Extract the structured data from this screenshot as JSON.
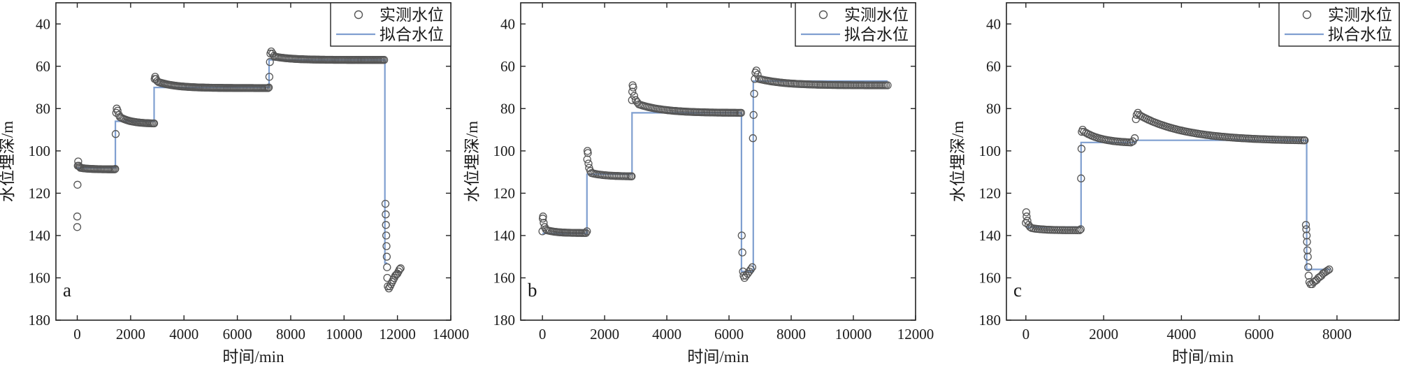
{
  "chart_data": [
    {
      "type": "scatter",
      "panel_label": "a",
      "xlabel": "时间/min",
      "ylabel": "水位埋深/m",
      "xlim": [
        -800,
        14000
      ],
      "ylim": [
        180,
        30
      ],
      "y_inverted": true,
      "xticks": [
        0,
        2000,
        4000,
        6000,
        8000,
        10000,
        12000,
        14000
      ],
      "yticks": [
        40,
        60,
        80,
        100,
        120,
        140,
        160,
        180
      ],
      "legend_position": "top-right",
      "legend": [
        "实测水位",
        "拟合水位"
      ],
      "series": [
        {
          "name": "实测水位",
          "marker": "open-circle",
          "color": "#555555",
          "segments": [
            {
              "points": [
                [
                  0,
                  136
                ],
                [
                  0,
                  131
                ],
                [
                  10,
                  116
                ],
                [
                  20,
                  107
                ],
                [
                  35,
                  105
                ],
                [
                  60,
                  107
                ],
                [
                  90,
                  107.5
                ]
              ]
            },
            {
              "decay": {
                "x_start": 120,
                "x_end": 1400,
                "y_start": 108,
                "y_end": 108.7,
                "n": 26,
                "k": 4
              }
            },
            {
              "points": [
                [
                  1420,
                  108.5
                ],
                [
                  1440,
                  92
                ],
                [
                  1460,
                  82
                ],
                [
                  1480,
                  80
                ],
                [
                  1510,
                  81
                ],
                [
                  1560,
                  83
                ]
              ]
            },
            {
              "decay": {
                "x_start": 1600,
                "x_end": 2850,
                "y_start": 84,
                "y_end": 87,
                "n": 24,
                "k": 3
              }
            },
            {
              "points": [
                [
                  2880,
                  87
                ],
                [
                  2900,
                  66
                ],
                [
                  2920,
                  65
                ],
                [
                  2950,
                  66
                ],
                [
                  3000,
                  67
                ]
              ]
            },
            {
              "decay": {
                "x_start": 3050,
                "x_end": 7150,
                "y_start": 67.5,
                "y_end": 70.3,
                "n": 80,
                "k": 6
              }
            },
            {
              "points": [
                [
                  7180,
                  70
                ],
                [
                  7200,
                  65
                ],
                [
                  7220,
                  58
                ],
                [
                  7240,
                  54
                ],
                [
                  7270,
                  53
                ],
                [
                  7320,
                  54
                ],
                [
                  7380,
                  55
                ]
              ]
            },
            {
              "decay": {
                "x_start": 7420,
                "x_end": 11450,
                "y_start": 55.5,
                "y_end": 57,
                "n": 80,
                "k": 6
              }
            },
            {
              "points": [
                [
                  11500,
                  57
                ],
                [
                  11550,
                  125
                ],
                [
                  11560,
                  130
                ],
                [
                  11570,
                  135
                ],
                [
                  11580,
                  140
                ],
                [
                  11590,
                  145
                ],
                [
                  11600,
                  150
                ],
                [
                  11610,
                  155
                ],
                [
                  11620,
                  160
                ],
                [
                  11640,
                  164
                ],
                [
                  11680,
                  165
                ],
                [
                  11720,
                  164
                ],
                [
                  11760,
                  163
                ],
                [
                  11800,
                  162
                ],
                [
                  11840,
                  161
                ],
                [
                  11880,
                  160
                ],
                [
                  11920,
                  159
                ],
                [
                  11960,
                  158.5
                ],
                [
                  12000,
                  158
                ],
                [
                  12040,
                  157
                ],
                [
                  12080,
                  156
                ],
                [
                  12120,
                  155.5
                ]
              ]
            }
          ]
        },
        {
          "name": "拟合水位",
          "color": "#7f9fd0",
          "points": [
            [
              0,
              108
            ],
            [
              1430,
              108
            ],
            [
              1430,
              86
            ],
            [
              2880,
              86
            ],
            [
              2880,
              70
            ],
            [
              7190,
              70
            ],
            [
              7190,
              57
            ],
            [
              11530,
              57
            ],
            [
              11530,
              153
            ],
            [
              11620,
              153
            ]
          ]
        }
      ]
    },
    {
      "type": "scatter",
      "panel_label": "b",
      "xlabel": "时间/min",
      "ylabel": "水位埋深/m",
      "xlim": [
        -700,
        12000
      ],
      "ylim": [
        180,
        30
      ],
      "y_inverted": true,
      "xticks": [
        0,
        2000,
        4000,
        6000,
        8000,
        10000,
        12000
      ],
      "yticks": [
        40,
        60,
        80,
        100,
        120,
        140,
        160,
        180
      ],
      "legend_position": "top-right",
      "legend": [
        "实测水位",
        "拟合水位"
      ],
      "series": [
        {
          "name": "实测水位",
          "marker": "open-circle",
          "color": "#555555",
          "segments": [
            {
              "points": [
                [
                  0,
                  138
                ],
                [
                  10,
                  132
                ],
                [
                  20,
                  131
                ],
                [
                  40,
                  134
                ],
                [
                  70,
                  136
                ],
                [
                  110,
                  137
                ]
              ]
            },
            {
              "decay": {
                "x_start": 150,
                "x_end": 1400,
                "y_start": 137.5,
                "y_end": 138.8,
                "n": 26,
                "k": 4
              }
            },
            {
              "points": [
                [
                  1430,
                  138
                ],
                [
                  1440,
                  104
                ],
                [
                  1450,
                  100
                ],
                [
                  1460,
                  101
                ],
                [
                  1480,
                  106
                ],
                [
                  1500,
                  108
                ],
                [
                  1540,
                  109.5
                ]
              ]
            },
            {
              "decay": {
                "x_start": 1580,
                "x_end": 2850,
                "y_start": 110.5,
                "y_end": 112,
                "n": 24,
                "k": 3
              }
            },
            {
              "points": [
                [
                  2870,
                  112
                ],
                [
                  2880,
                  76
                ],
                [
                  2890,
                  72
                ],
                [
                  2900,
                  69
                ],
                [
                  2920,
                  70
                ],
                [
                  2950,
                  74
                ],
                [
                  3000,
                  76
                ],
                [
                  3050,
                  77
                ]
              ]
            },
            {
              "decay": {
                "x_start": 3100,
                "x_end": 6350,
                "y_start": 78,
                "y_end": 82,
                "n": 64,
                "k": 4
              }
            },
            {
              "points": [
                [
                  6390,
                  82
                ],
                [
                  6410,
                  140
                ],
                [
                  6430,
                  148
                ],
                [
                  6450,
                  157
                ],
                [
                  6470,
                  159
                ],
                [
                  6500,
                  160
                ],
                [
                  6550,
                  159
                ],
                [
                  6600,
                  158
                ],
                [
                  6650,
                  157
                ],
                [
                  6700,
                  156
                ],
                [
                  6750,
                  155
                ]
              ]
            },
            {
              "points": [
                [
                  6770,
                  94
                ],
                [
                  6790,
                  83
                ],
                [
                  6810,
                  73
                ],
                [
                  6830,
                  66
                ],
                [
                  6850,
                  63
                ],
                [
                  6880,
                  62
                ],
                [
                  6920,
                  64
                ]
              ]
            },
            {
              "decay": {
                "x_start": 6970,
                "x_end": 11100,
                "y_start": 66,
                "y_end": 69,
                "n": 80,
                "k": 5
              }
            }
          ]
        },
        {
          "name": "拟合水位",
          "color": "#7f9fd0",
          "points": [
            [
              0,
              139
            ],
            [
              1430,
              139
            ],
            [
              1430,
              111
            ],
            [
              2880,
              111
            ],
            [
              2880,
              82
            ],
            [
              6400,
              82
            ],
            [
              6400,
              157
            ],
            [
              6780,
              157
            ],
            [
              6780,
              67
            ],
            [
              11100,
              67
            ]
          ]
        }
      ]
    },
    {
      "type": "scatter",
      "panel_label": "c",
      "xlabel": "时间/min",
      "ylabel": "水位埋深/m",
      "xlim": [
        -500,
        9600
      ],
      "ylim": [
        180,
        30
      ],
      "y_inverted": true,
      "xticks": [
        0,
        2000,
        4000,
        6000,
        8000
      ],
      "yticks": [
        40,
        60,
        80,
        100,
        120,
        140,
        160,
        180
      ],
      "legend_position": "top-right",
      "legend": [
        "实测水位",
        "拟合水位"
      ],
      "series": [
        {
          "name": "实测水位",
          "marker": "open-circle",
          "color": "#555555",
          "segments": [
            {
              "points": [
                [
                  0,
                  134
                ],
                [
                  10,
                  129
                ],
                [
                  20,
                  131
                ],
                [
                  40,
                  133
                ],
                [
                  70,
                  135
                ],
                [
                  110,
                  136
                ]
              ]
            },
            {
              "decay": {
                "x_start": 150,
                "x_end": 1380,
                "y_start": 136.5,
                "y_end": 137.5,
                "n": 26,
                "k": 4
              }
            },
            {
              "points": [
                [
                  1410,
                  137
                ],
                [
                  1420,
                  113
                ],
                [
                  1430,
                  99
                ],
                [
                  1440,
                  91
                ],
                [
                  1460,
                  90
                ],
                [
                  1500,
                  91
                ]
              ]
            },
            {
              "decay": {
                "x_start": 1550,
                "x_end": 2700,
                "y_start": 91.5,
                "y_end": 96,
                "n": 26,
                "k": 2.5
              }
            },
            {
              "points": [
                [
                  2750,
                  95.5
                ],
                [
                  2800,
                  94
                ],
                [
                  2830,
                  85
                ],
                [
                  2850,
                  83
                ],
                [
                  2880,
                  82
                ],
                [
                  2920,
                  83
                ]
              ]
            },
            {
              "decay": {
                "x_start": 2960,
                "x_end": 7150,
                "y_start": 83.5,
                "y_end": 95,
                "n": 90,
                "k": 3.5
              }
            },
            {
              "points": [
                [
                  7170,
                  95
                ],
                [
                  7200,
                  135
                ],
                [
                  7210,
                  137
                ],
                [
                  7220,
                  140
                ],
                [
                  7230,
                  143
                ],
                [
                  7240,
                  147
                ],
                [
                  7250,
                  150
                ],
                [
                  7260,
                  155
                ],
                [
                  7270,
                  159
                ],
                [
                  7290,
                  162
                ],
                [
                  7320,
                  163
                ],
                [
                  7360,
                  163
                ],
                [
                  7400,
                  162
                ],
                [
                  7440,
                  161.5
                ],
                [
                  7480,
                  161
                ],
                [
                  7520,
                  160
                ],
                [
                  7560,
                  159.5
                ],
                [
                  7600,
                  159
                ],
                [
                  7640,
                  158
                ],
                [
                  7680,
                  157.5
                ],
                [
                  7720,
                  157
                ],
                [
                  7760,
                  156.5
                ],
                [
                  7800,
                  156
                ]
              ]
            }
          ]
        },
        {
          "name": "拟合水位",
          "color": "#7f9fd0",
          "points": [
            [
              0,
              136
            ],
            [
              1420,
              136
            ],
            [
              1420,
              96
            ],
            [
              2830,
              96
            ],
            [
              2830,
              95
            ],
            [
              7220,
              95
            ],
            [
              7220,
              156
            ],
            [
              7830,
              156
            ]
          ]
        }
      ]
    }
  ]
}
